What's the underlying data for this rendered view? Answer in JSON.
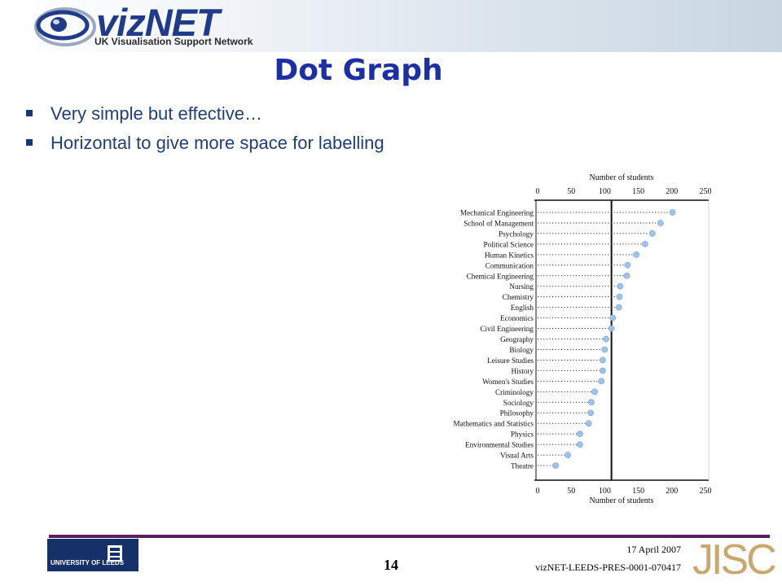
{
  "header": {
    "logo_text": "vizNET",
    "logo_subtitle": "UK Visualisation Support Network"
  },
  "slide": {
    "title": "Dot Graph",
    "bullets": [
      "Very simple but effective…",
      "Horizontal to give more space for labelling"
    ]
  },
  "chart_data": {
    "type": "scatter",
    "style": "dot-plot",
    "orientation": "horizontal",
    "title": "",
    "xlabel": "Number of students",
    "xlim": [
      0,
      250
    ],
    "xticks": [
      0,
      50,
      100,
      150,
      200,
      250
    ],
    "reference_line": 110,
    "categories": [
      "Mechanical Engineering",
      "School of Management",
      "Psychology",
      "Political Science",
      "Human Kinetics",
      "Communication",
      "Chemical Engineering",
      "Nursing",
      "Chemistry",
      "English",
      "Economics",
      "Civil Engineering",
      "Geography",
      "Biology",
      "Leisure Studies",
      "History",
      "Women's Studies",
      "Criminology",
      "Sociology",
      "Philosophy",
      "Mathematics and Statistics",
      "Physics",
      "Environmental Studies",
      "Visual Arts",
      "Theatre"
    ],
    "values": [
      201,
      183,
      171,
      160,
      147,
      134,
      133,
      123,
      122,
      121,
      112,
      110,
      102,
      100,
      97,
      97,
      95,
      85,
      80,
      79,
      76,
      63,
      63,
      45,
      27
    ],
    "marker_color": "#9ec2ea"
  },
  "footer": {
    "university": "UNIVERSITY OF LEEDS",
    "page_number": "14",
    "date": "17 April 2007",
    "doc_id": "vizNET-LEEDS-PRES-0001-070417",
    "jisc": "JISC"
  }
}
